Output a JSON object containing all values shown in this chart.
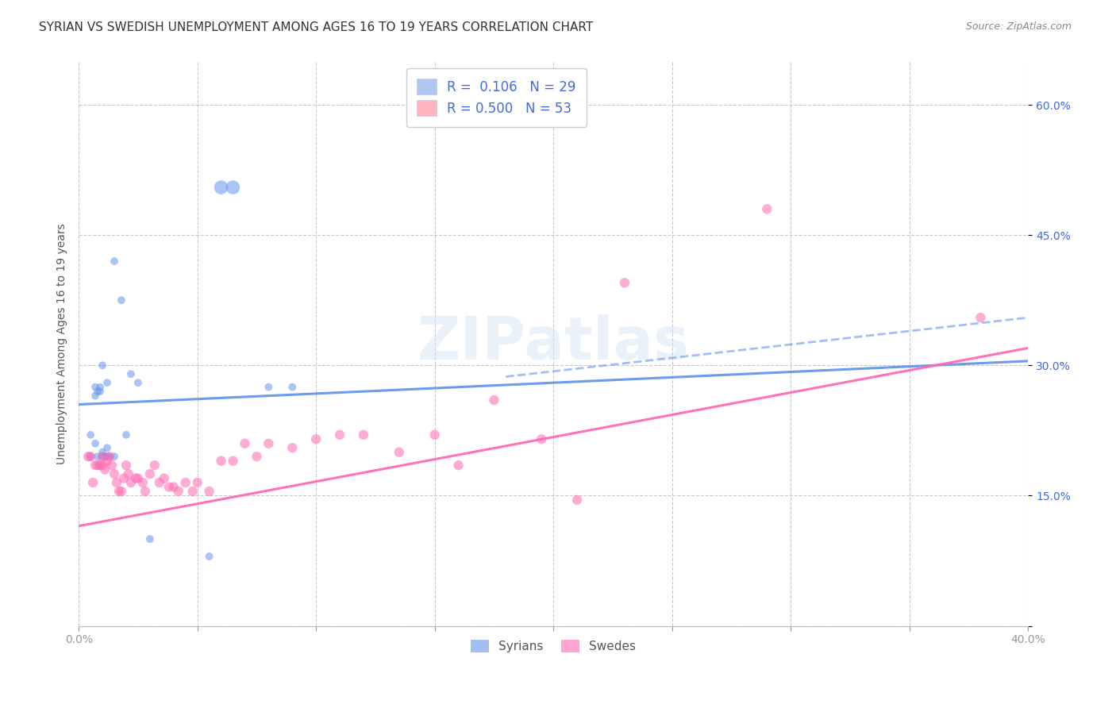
{
  "title": "SYRIAN VS SWEDISH UNEMPLOYMENT AMONG AGES 16 TO 19 YEARS CORRELATION CHART",
  "source": "Source: ZipAtlas.com",
  "ylabel": "Unemployment Among Ages 16 to 19 years",
  "xlim": [
    0.0,
    0.4
  ],
  "ylim": [
    0.0,
    0.65
  ],
  "syrians_color": "#6495ED",
  "swedes_color": "#FF69B4",
  "background_color": "#ffffff",
  "grid_color": "#bbbbbb",
  "title_fontsize": 11,
  "label_fontsize": 10,
  "watermark": "ZIPatlas",
  "legend1_label1": "R =  0.106   N = 29",
  "legend1_label2": "R = 0.500   N = 53",
  "legend1_color1": "#aec6f0",
  "legend1_color2": "#ffb6c1",
  "legend_text_color": "#4169e1",
  "syrians_trend_x": [
    0.0,
    0.4
  ],
  "syrians_trend_y": [
    0.255,
    0.305
  ],
  "swedes_trend_x": [
    0.0,
    0.4
  ],
  "swedes_trend_y": [
    0.115,
    0.32
  ],
  "syrians_x": [
    0.005,
    0.005,
    0.007,
    0.007,
    0.007,
    0.008,
    0.008,
    0.009,
    0.009,
    0.01,
    0.01,
    0.01,
    0.011,
    0.012,
    0.012,
    0.012,
    0.013,
    0.015,
    0.015,
    0.018,
    0.02,
    0.022,
    0.025,
    0.03,
    0.055,
    0.06,
    0.065,
    0.08,
    0.09
  ],
  "syrians_y": [
    0.195,
    0.22,
    0.21,
    0.265,
    0.275,
    0.195,
    0.27,
    0.275,
    0.27,
    0.195,
    0.2,
    0.3,
    0.195,
    0.195,
    0.205,
    0.28,
    0.195,
    0.195,
    0.42,
    0.375,
    0.22,
    0.29,
    0.28,
    0.1,
    0.08,
    0.505,
    0.505,
    0.275,
    0.275
  ],
  "syrians_sizes": [
    50,
    50,
    50,
    50,
    50,
    50,
    50,
    50,
    50,
    50,
    50,
    50,
    50,
    50,
    50,
    50,
    50,
    50,
    50,
    50,
    50,
    50,
    50,
    50,
    50,
    160,
    160,
    50,
    50
  ],
  "swedes_x": [
    0.004,
    0.005,
    0.006,
    0.007,
    0.008,
    0.009,
    0.01,
    0.01,
    0.011,
    0.012,
    0.013,
    0.014,
    0.015,
    0.016,
    0.017,
    0.018,
    0.019,
    0.02,
    0.021,
    0.022,
    0.024,
    0.025,
    0.027,
    0.028,
    0.03,
    0.032,
    0.034,
    0.036,
    0.038,
    0.04,
    0.042,
    0.045,
    0.048,
    0.05,
    0.055,
    0.06,
    0.065,
    0.07,
    0.075,
    0.08,
    0.09,
    0.1,
    0.11,
    0.12,
    0.135,
    0.15,
    0.16,
    0.175,
    0.195,
    0.21,
    0.23,
    0.29,
    0.38
  ],
  "swedes_y": [
    0.195,
    0.195,
    0.165,
    0.185,
    0.185,
    0.185,
    0.195,
    0.185,
    0.18,
    0.19,
    0.195,
    0.185,
    0.175,
    0.165,
    0.155,
    0.155,
    0.17,
    0.185,
    0.175,
    0.165,
    0.17,
    0.17,
    0.165,
    0.155,
    0.175,
    0.185,
    0.165,
    0.17,
    0.16,
    0.16,
    0.155,
    0.165,
    0.155,
    0.165,
    0.155,
    0.19,
    0.19,
    0.21,
    0.195,
    0.21,
    0.205,
    0.215,
    0.22,
    0.22,
    0.2,
    0.22,
    0.185,
    0.26,
    0.215,
    0.145,
    0.395,
    0.48,
    0.355
  ],
  "swedes_size": 80
}
